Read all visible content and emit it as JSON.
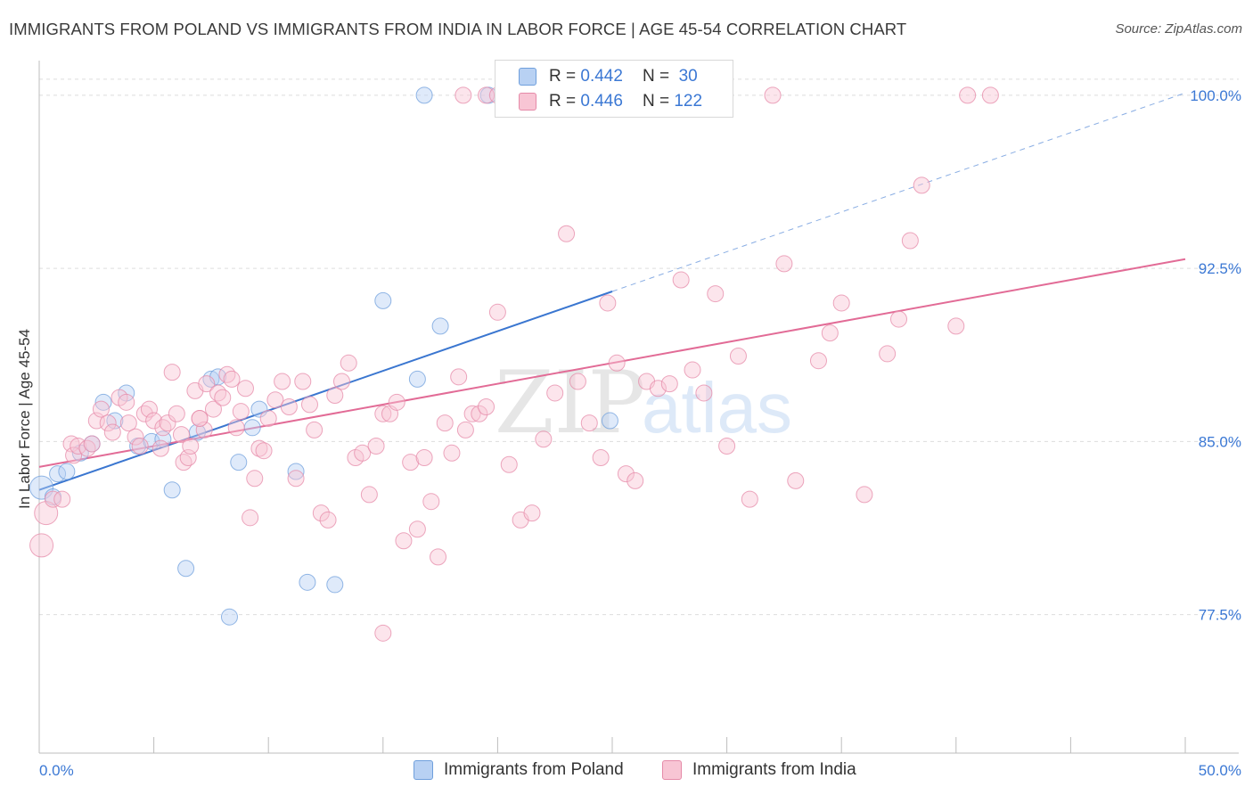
{
  "header": {
    "title": "IMMIGRANTS FROM POLAND VS IMMIGRANTS FROM INDIA IN LABOR FORCE | AGE 45-54 CORRELATION CHART",
    "source": "Source: ZipAtlas.com"
  },
  "legend": {
    "rows": [
      {
        "r_label": "R =",
        "r_value": "0.442",
        "n_label": "N =",
        "n_value": "30"
      },
      {
        "r_label": "R =",
        "r_value": "0.446",
        "n_label": "N =",
        "n_value": "122"
      }
    ]
  },
  "watermark": {
    "part1": "ZIP",
    "part2": "atlas"
  },
  "colors": {
    "poland_fill": "#b8d1f3",
    "poland_stroke": "#6f9fdc",
    "poland_line": "#3a76d0",
    "india_fill": "#f8c5d4",
    "india_stroke": "#e58aa8",
    "india_line": "#e26b96",
    "tick_label": "#3b78d4",
    "grid": "#dddddd"
  },
  "chart_data": {
    "type": "scatter",
    "xlabel": "",
    "ylabel": "In Labor Force | Age 45-54",
    "xlim": [
      0,
      50
    ],
    "ylim": [
      71.5,
      101.5
    ],
    "x_tick_labels": [
      "0.0%",
      "50.0%"
    ],
    "y_ticks": [
      77.5,
      85.0,
      92.5,
      100.0
    ],
    "y_tick_labels": [
      "77.5%",
      "85.0%",
      "92.5%",
      "100.0%"
    ],
    "grid": "horizontal dashed",
    "series": [
      {
        "name": "Immigrants from Poland",
        "points": [
          [
            0.1,
            83.0
          ],
          [
            0.6,
            82.6
          ],
          [
            0.8,
            83.6
          ],
          [
            1.2,
            83.7
          ],
          [
            1.8,
            84.5
          ],
          [
            2.3,
            84.9
          ],
          [
            2.8,
            86.7
          ],
          [
            3.3,
            85.9
          ],
          [
            3.8,
            87.1
          ],
          [
            4.3,
            84.8
          ],
          [
            4.9,
            85.0
          ],
          [
            5.4,
            85.1
          ],
          [
            5.8,
            82.9
          ],
          [
            6.4,
            79.5
          ],
          [
            6.9,
            85.4
          ],
          [
            7.5,
            87.7
          ],
          [
            7.8,
            87.8
          ],
          [
            8.3,
            77.4
          ],
          [
            8.7,
            84.1
          ],
          [
            9.3,
            85.6
          ],
          [
            9.6,
            86.4
          ],
          [
            11.2,
            83.7
          ],
          [
            11.7,
            78.9
          ],
          [
            12.9,
            78.8
          ],
          [
            15.0,
            91.1
          ],
          [
            16.5,
            87.7
          ],
          [
            16.8,
            100.0
          ],
          [
            17.5,
            90.0
          ],
          [
            19.6,
            100.0
          ],
          [
            24.9,
            85.9
          ]
        ],
        "trend": {
          "x": [
            0,
            25
          ],
          "y": [
            82.9,
            91.5
          ],
          "extrapolated": {
            "x": [
              25,
              50
            ],
            "y": [
              91.5,
              100.1
            ]
          }
        }
      },
      {
        "name": "Immigrants from India",
        "points": [
          [
            0.1,
            80.5
          ],
          [
            0.3,
            81.9
          ],
          [
            0.6,
            82.5
          ],
          [
            1.0,
            82.5
          ],
          [
            1.4,
            84.9
          ],
          [
            1.5,
            84.4
          ],
          [
            1.7,
            84.8
          ],
          [
            2.1,
            84.7
          ],
          [
            2.3,
            84.9
          ],
          [
            2.5,
            85.9
          ],
          [
            2.7,
            86.4
          ],
          [
            3.0,
            85.8
          ],
          [
            3.2,
            85.4
          ],
          [
            3.5,
            86.9
          ],
          [
            3.8,
            86.7
          ],
          [
            3.9,
            85.8
          ],
          [
            4.2,
            85.2
          ],
          [
            4.4,
            84.8
          ],
          [
            4.6,
            86.2
          ],
          [
            4.8,
            86.4
          ],
          [
            5.0,
            85.9
          ],
          [
            5.3,
            84.7
          ],
          [
            5.4,
            85.6
          ],
          [
            5.6,
            85.8
          ],
          [
            5.8,
            88.0
          ],
          [
            6.0,
            86.2
          ],
          [
            6.2,
            85.3
          ],
          [
            6.3,
            84.1
          ],
          [
            6.5,
            84.3
          ],
          [
            6.6,
            84.8
          ],
          [
            6.8,
            87.2
          ],
          [
            7.0,
            86.0
          ],
          [
            7.2,
            85.5
          ],
          [
            7.3,
            87.5
          ],
          [
            7.6,
            86.4
          ],
          [
            7.8,
            87.1
          ],
          [
            8.0,
            86.9
          ],
          [
            8.2,
            87.9
          ],
          [
            8.4,
            87.7
          ],
          [
            8.6,
            85.6
          ],
          [
            8.8,
            86.3
          ],
          [
            9.0,
            87.3
          ],
          [
            9.2,
            81.7
          ],
          [
            9.4,
            83.4
          ],
          [
            9.6,
            84.7
          ],
          [
            9.8,
            84.6
          ],
          [
            10.0,
            86.0
          ],
          [
            10.3,
            86.8
          ],
          [
            10.6,
            87.6
          ],
          [
            10.9,
            86.5
          ],
          [
            11.2,
            83.4
          ],
          [
            11.5,
            87.6
          ],
          [
            11.8,
            86.6
          ],
          [
            12.0,
            85.5
          ],
          [
            12.3,
            81.9
          ],
          [
            12.6,
            81.6
          ],
          [
            12.9,
            87.0
          ],
          [
            13.2,
            87.6
          ],
          [
            13.5,
            88.4
          ],
          [
            13.8,
            84.3
          ],
          [
            14.1,
            84.5
          ],
          [
            14.4,
            82.7
          ],
          [
            14.7,
            84.8
          ],
          [
            15.0,
            86.2
          ],
          [
            15.3,
            86.2
          ],
          [
            15.6,
            86.7
          ],
          [
            15.9,
            80.7
          ],
          [
            16.2,
            84.1
          ],
          [
            16.5,
            81.2
          ],
          [
            16.8,
            84.3
          ],
          [
            17.1,
            82.4
          ],
          [
            17.4,
            80.0
          ],
          [
            17.7,
            85.8
          ],
          [
            18.0,
            84.5
          ],
          [
            18.3,
            87.8
          ],
          [
            18.6,
            85.5
          ],
          [
            18.9,
            86.2
          ],
          [
            19.2,
            86.2
          ],
          [
            19.5,
            100.0
          ],
          [
            19.5,
            86.5
          ],
          [
            20.0,
            90.6
          ],
          [
            20.5,
            84.0
          ],
          [
            21.0,
            81.6
          ],
          [
            21.5,
            81.9
          ],
          [
            22.0,
            85.1
          ],
          [
            22.5,
            87.1
          ],
          [
            23.0,
            94.0
          ],
          [
            23.5,
            87.6
          ],
          [
            24.0,
            85.8
          ],
          [
            24.5,
            84.3
          ],
          [
            24.8,
            91.0
          ],
          [
            25.2,
            88.4
          ],
          [
            25.6,
            83.6
          ],
          [
            26.0,
            83.3
          ],
          [
            26.5,
            87.6
          ],
          [
            27.0,
            87.3
          ],
          [
            27.5,
            87.5
          ],
          [
            28.0,
            92.0
          ],
          [
            28.5,
            88.1
          ],
          [
            29.0,
            87.1
          ],
          [
            29.5,
            91.4
          ],
          [
            30.0,
            84.8
          ],
          [
            30.5,
            88.7
          ],
          [
            31.0,
            82.5
          ],
          [
            32.0,
            100.0
          ],
          [
            32.5,
            92.7
          ],
          [
            33.0,
            83.3
          ],
          [
            34.0,
            88.5
          ],
          [
            34.5,
            89.7
          ],
          [
            35.0,
            91.0
          ],
          [
            36.0,
            82.7
          ],
          [
            37.0,
            88.8
          ],
          [
            37.5,
            90.3
          ],
          [
            38.0,
            93.7
          ],
          [
            38.5,
            96.1
          ],
          [
            40.0,
            90.0
          ],
          [
            40.5,
            100.0
          ],
          [
            41.5,
            100.0
          ],
          [
            20.0,
            100.0
          ],
          [
            18.5,
            100.0
          ],
          [
            15.0,
            76.7
          ],
          [
            7.0,
            86.0
          ]
        ],
        "trend": {
          "x": [
            0,
            50
          ],
          "y": [
            83.9,
            92.9
          ]
        }
      }
    ]
  }
}
